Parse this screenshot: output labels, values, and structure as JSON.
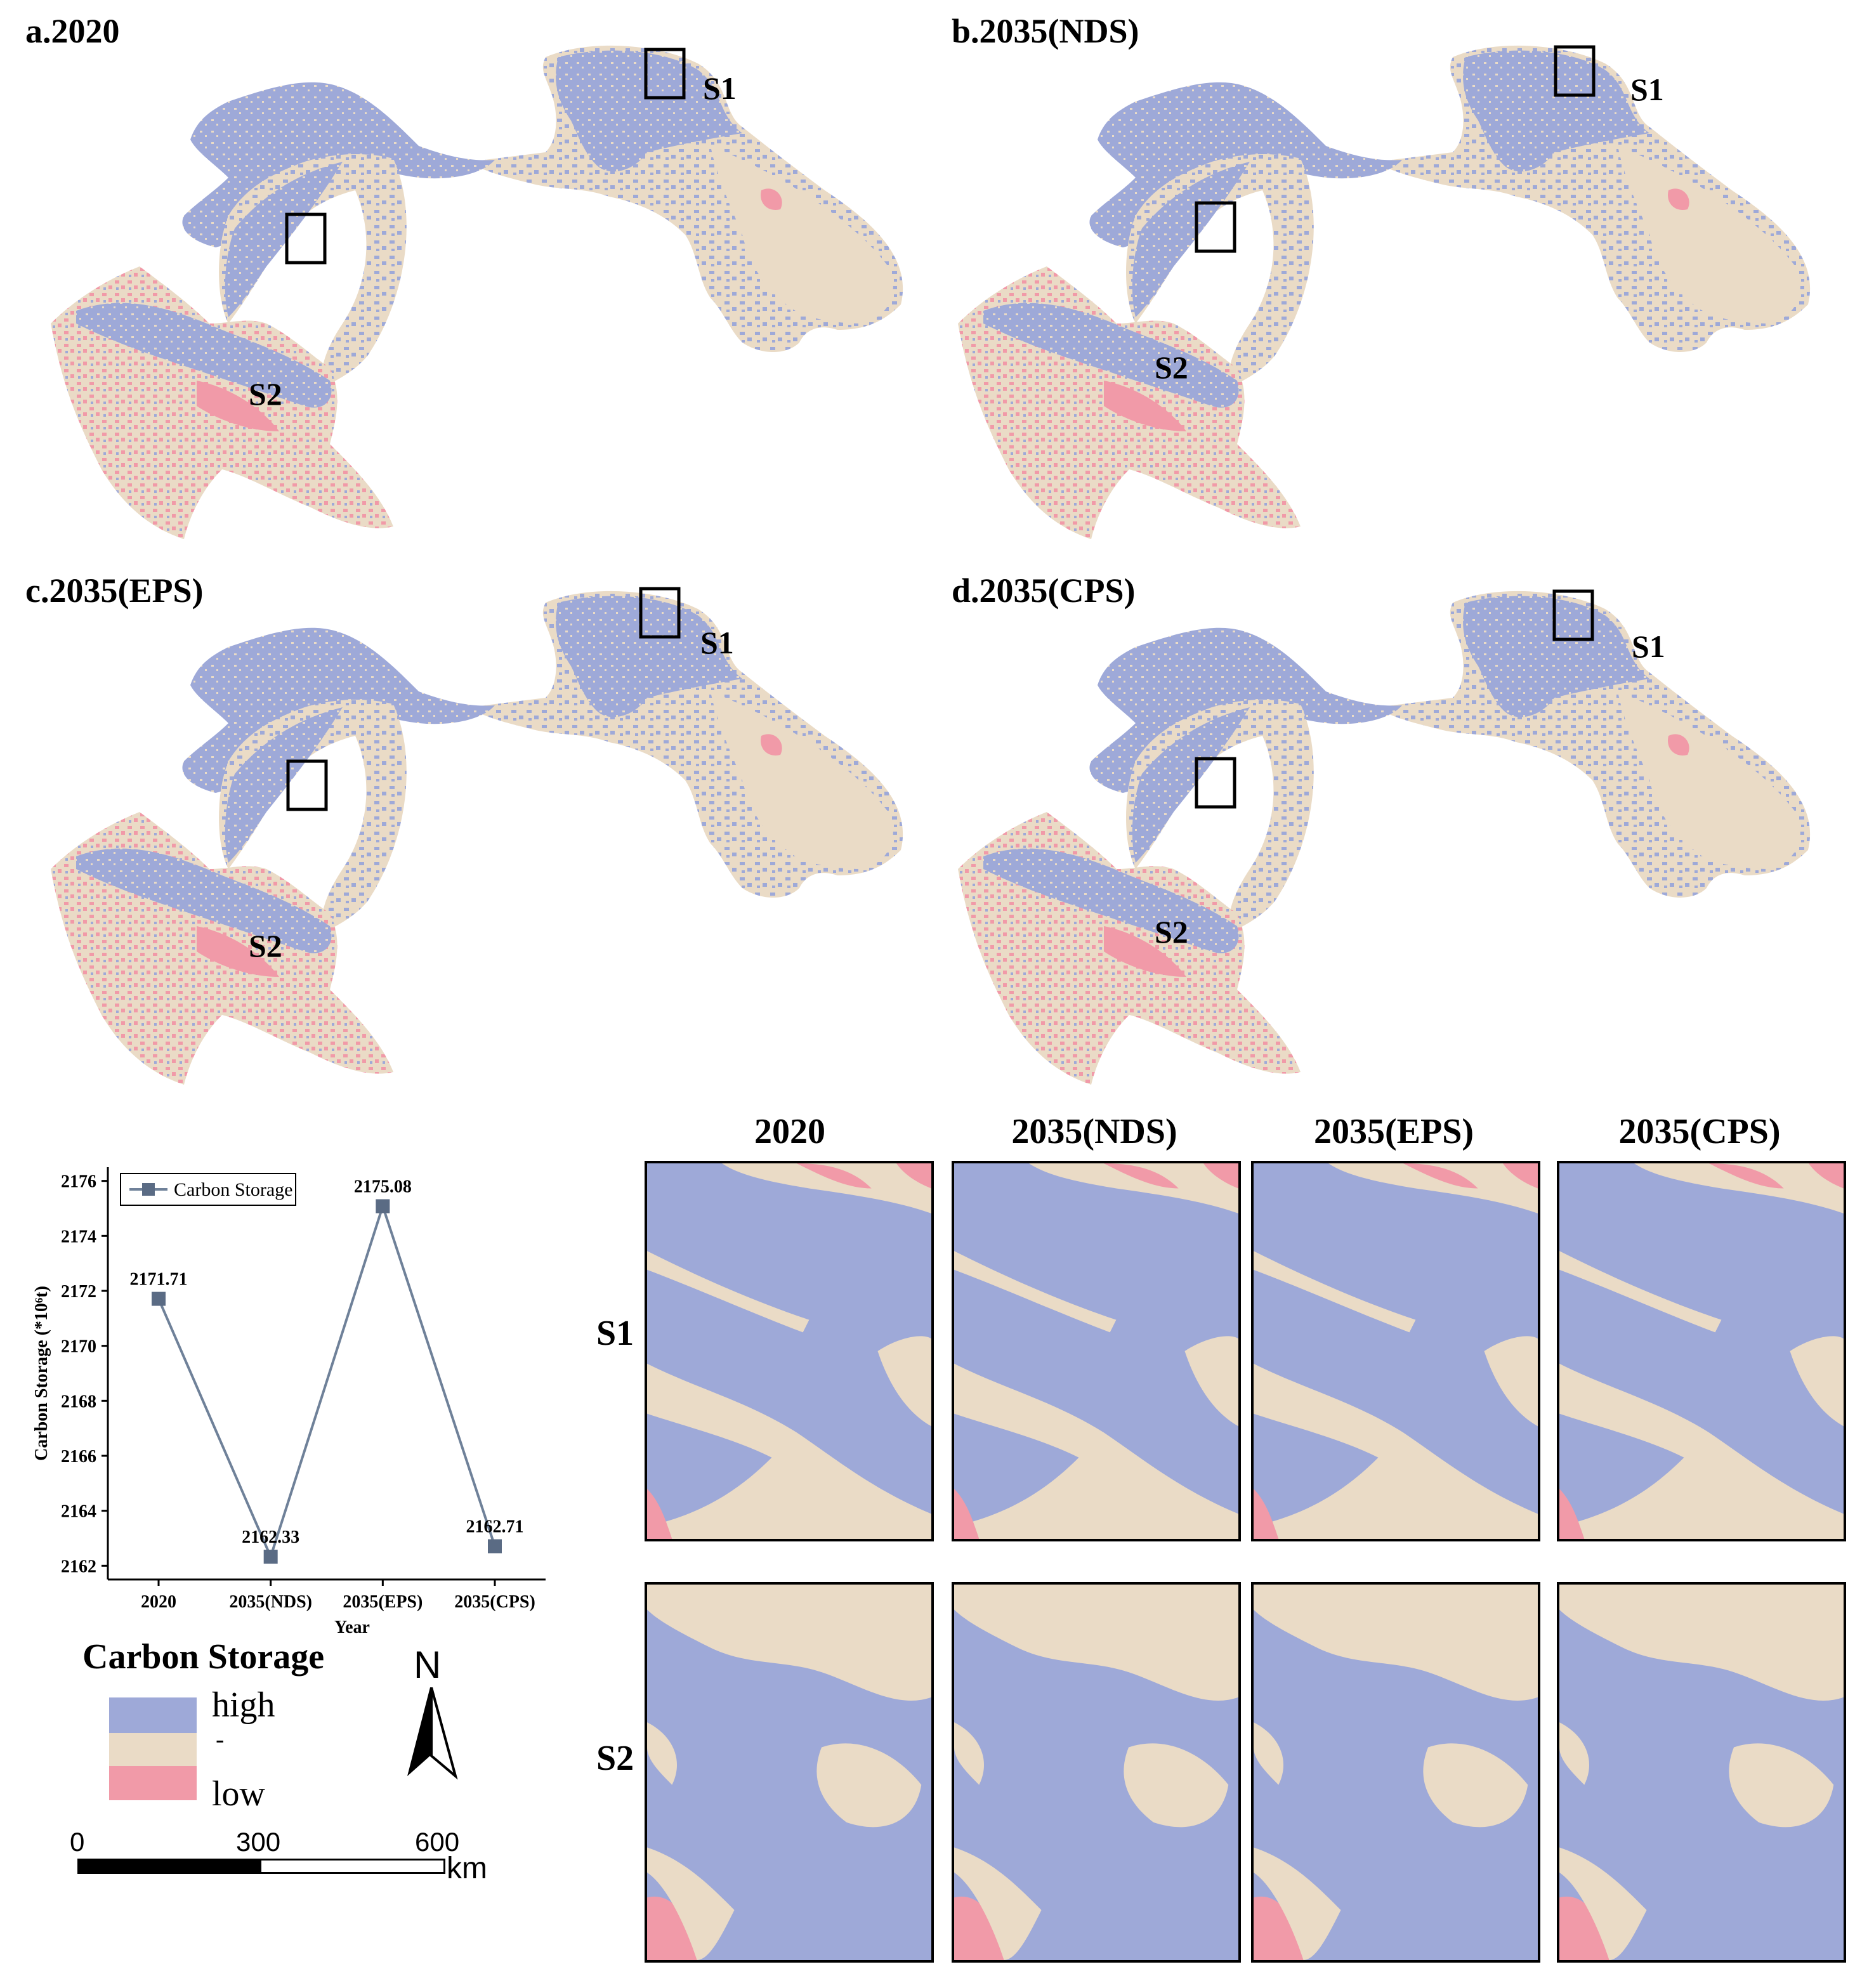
{
  "colors": {
    "high": "#9EA9D8",
    "mid": "#EADBC6",
    "low": "#F19AA8",
    "box": "#000000",
    "line": "#6F8199",
    "marker": "#5A6B84"
  },
  "panels": [
    {
      "id": "a",
      "title": "a.2020"
    },
    {
      "id": "b",
      "title": "b.2035(NDS)"
    },
    {
      "id": "c",
      "title": "c.2035(EPS)"
    },
    {
      "id": "d",
      "title": "d.2035(CPS)"
    }
  ],
  "region_labels": {
    "s1": "S1",
    "s2": "S2"
  },
  "zoom_grid": {
    "columns": [
      "2020",
      "2035(NDS)",
      "2035(EPS)",
      "2035(CPS)"
    ],
    "rows": [
      "S1",
      "S2"
    ]
  },
  "legend": {
    "title": "Carbon Storage",
    "high_label": "high",
    "mid_label": "-",
    "low_label": "low",
    "north_label": "N"
  },
  "scale_bar": {
    "ticks": [
      "0",
      "300",
      "600"
    ],
    "unit": "km"
  },
  "chart_data": {
    "type": "line",
    "categories": [
      "2020",
      "2035(NDS)",
      "2035(EPS)",
      "2035(CPS)"
    ],
    "series": [
      {
        "name": "Carbon Storage",
        "values": [
          2171.71,
          2162.33,
          2175.08,
          2162.71
        ]
      }
    ],
    "data_labels": [
      "2171.71",
      "2162.33",
      "2175.08",
      "2162.71"
    ],
    "xlabel": "Year",
    "ylabel": "Carbon Storage (*10⁶t)",
    "ylim": [
      2161.5,
      2176.5
    ],
    "yticks": [
      2162,
      2164,
      2166,
      2168,
      2170,
      2172,
      2174,
      2176
    ],
    "grid": false,
    "legend_position": "top-left"
  }
}
